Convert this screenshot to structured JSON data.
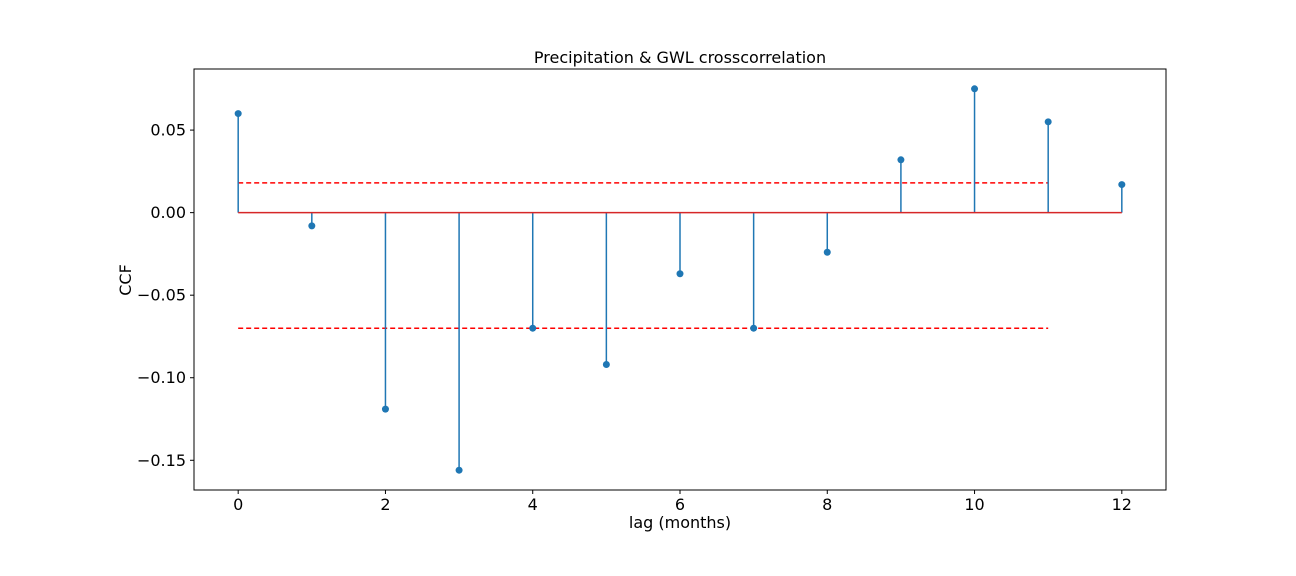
{
  "chart_data": {
    "type": "stem",
    "title": "Precipitation & GWL crosscorrelation",
    "xlabel": "lag (months)",
    "ylabel": "CCF",
    "xlim": [
      -0.6,
      12.6
    ],
    "ylim": [
      -0.168,
      0.087
    ],
    "xticks": [
      0,
      2,
      4,
      6,
      8,
      10,
      12
    ],
    "yticks": [
      0.05,
      0.0,
      -0.05,
      -0.1,
      -0.15
    ],
    "ytick_labels": [
      "0.05",
      "0.00",
      "−0.05",
      "−0.10",
      "−0.15"
    ],
    "grid": false,
    "legend": "none",
    "series": [
      {
        "x": [
          0,
          1,
          2,
          3,
          4,
          5,
          6,
          7,
          8,
          9,
          10,
          11,
          12
        ],
        "values": [
          0.06,
          -0.008,
          -0.119,
          -0.156,
          -0.07,
          -0.092,
          -0.037,
          -0.07,
          -0.024,
          0.032,
          0.075,
          0.055,
          0.017
        ],
        "color": "#1f77b4"
      }
    ],
    "baseline": {
      "y": 0.0,
      "x_range": [
        0,
        12
      ],
      "color": "#d62728"
    },
    "confidence_bounds": [
      {
        "y": 0.018,
        "x_range": [
          0,
          11
        ],
        "color": "#ff0000",
        "style": "dashed"
      },
      {
        "y": -0.07,
        "x_range": [
          0,
          11
        ],
        "color": "#ff0000",
        "style": "dashed"
      }
    ]
  }
}
